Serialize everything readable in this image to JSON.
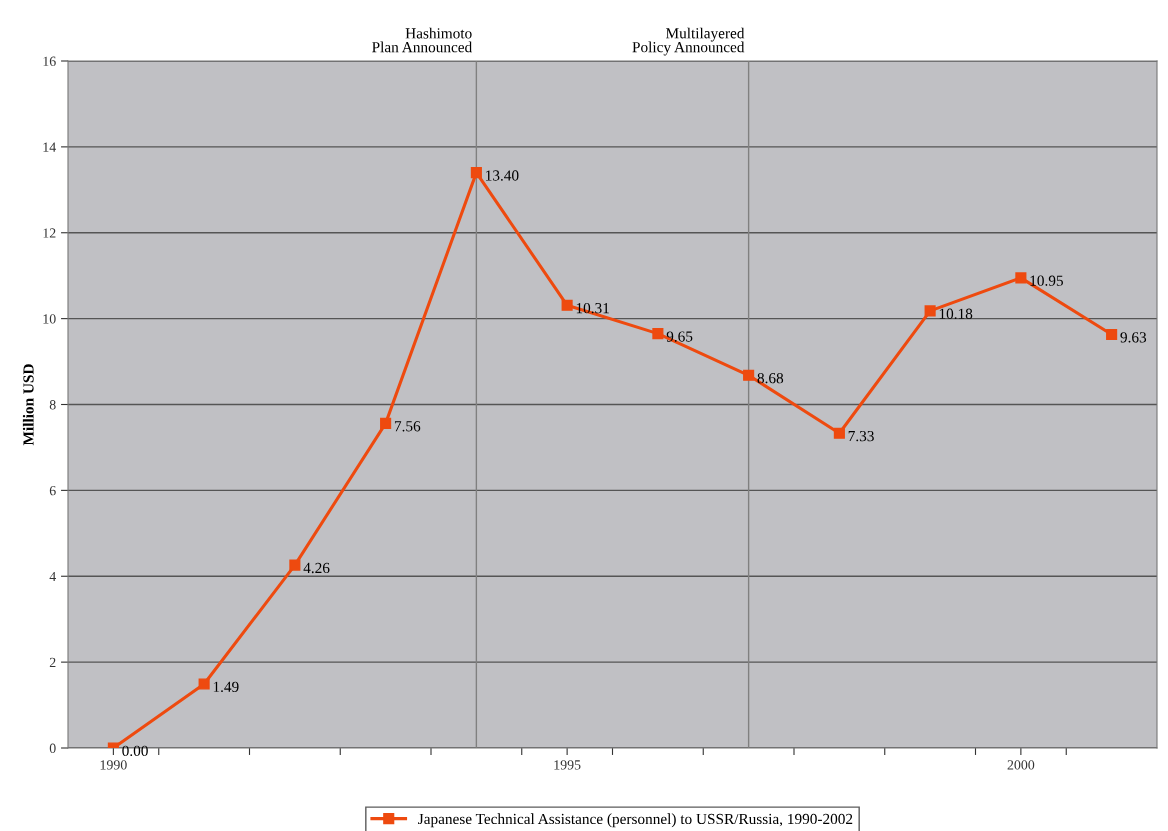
{
  "chart_data": {
    "type": "line",
    "ylabel": "Million USD",
    "x": [
      1990,
      1991,
      1992,
      1993,
      1994,
      1995,
      1996,
      1997,
      1998,
      1999,
      2000,
      2001
    ],
    "series": [
      {
        "name": "Japanese Technical Assistance (personnel) to USSR/Russia, 1990-2002",
        "color": "#ee4a0f",
        "values": [
          0.0,
          1.49,
          4.26,
          7.56,
          13.4,
          10.31,
          9.65,
          8.68,
          7.33,
          10.18,
          10.95,
          9.63
        ],
        "value_labels": [
          "0.00",
          "1.49",
          "4.26",
          "7.56",
          "13.40",
          "10.31",
          "9.65",
          "8.68",
          "7.33",
          "10.18",
          "10.95",
          "9.63"
        ]
      }
    ],
    "xlim": [
      1989.5,
      2001.5
    ],
    "xticks": [
      1990,
      {
        "value": 1990.5,
        "label": null
      },
      {
        "value": 1991.5,
        "label": null
      },
      {
        "value": 1992.5,
        "label": null
      },
      {
        "value": 1993.5,
        "label": null
      },
      {
        "value": 1994.5,
        "label": null
      },
      1995,
      {
        "value": 1995.5,
        "label": null
      },
      {
        "value": 1996.5,
        "label": null
      },
      {
        "value": 1997.5,
        "label": null
      },
      {
        "value": 1998.5,
        "label": null
      },
      {
        "value": 1999.5,
        "label": null
      },
      2000,
      {
        "value": 2000.5,
        "label": null
      }
    ],
    "ylim": [
      0,
      16
    ],
    "yticks": [
      0,
      2,
      4,
      6,
      8,
      10,
      12,
      14,
      16
    ],
    "ref_lines": [
      {
        "axis": "x",
        "value": 1994,
        "label": "Hashimoto\nPlan Announced",
        "color": "#808080"
      },
      {
        "axis": "x",
        "value": 1997,
        "label": "Multilayered\nPolicy Announced",
        "color": "#808080"
      }
    ],
    "grid": "y",
    "legend": "bottom",
    "marker": "square",
    "line_style": "solid"
  }
}
